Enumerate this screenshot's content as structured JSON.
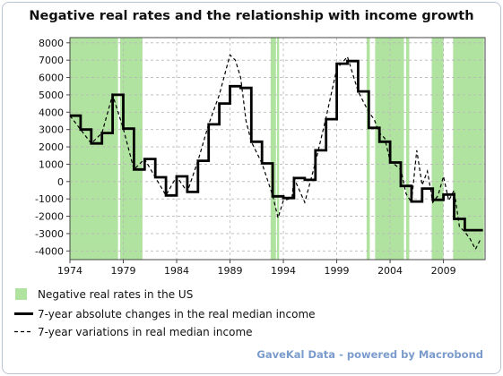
{
  "chart_data": {
    "type": "line",
    "title": "Negative real rates and the relationship with income growth",
    "xlabel": "",
    "ylabel": "",
    "xlim": [
      1974,
      2012.9
    ],
    "ylim": [
      -4500,
      8300
    ],
    "x_ticks": [
      1974,
      1979,
      1984,
      1989,
      1994,
      1999,
      2004,
      2009
    ],
    "y_ticks": [
      -4000,
      -3000,
      -2000,
      -1000,
      0,
      1000,
      2000,
      3000,
      4000,
      5000,
      6000,
      7000,
      8000
    ],
    "grid": true,
    "legend_position": "bottom-left",
    "negative_real_rate_periods": [
      [
        1974.0,
        1978.5
      ],
      [
        1978.7,
        1980.8
      ],
      [
        1992.8,
        1993.3
      ],
      [
        1993.4,
        1993.6
      ],
      [
        2001.8,
        2002.1
      ],
      [
        2002.6,
        2005.3
      ],
      [
        2005.5,
        2005.8
      ],
      [
        2007.9,
        2009.0
      ],
      [
        2009.9,
        2012.8
      ]
    ],
    "series": [
      {
        "name": "Negative real rates in the US",
        "type": "band",
        "color": "#b1e3a0"
      },
      {
        "name": "7-year absolute changes in the real median income",
        "type": "step",
        "color": "#000000",
        "x": [
          1974,
          1975,
          1976,
          1977,
          1978,
          1979,
          1980,
          1981,
          1982,
          1983,
          1984,
          1985,
          1986,
          1987,
          1988,
          1989,
          1990,
          1991,
          1992,
          1993,
          1994,
          1995,
          1996,
          1997,
          1998,
          1999,
          2000,
          2001,
          2002,
          2003,
          2004,
          2005,
          2006,
          2007,
          2008,
          2009,
          2010,
          2011,
          2012
        ],
        "y": [
          3800,
          3000,
          2200,
          2800,
          5000,
          3050,
          700,
          1300,
          250,
          -800,
          300,
          -600,
          1200,
          3300,
          4500,
          5500,
          5400,
          2300,
          1050,
          -850,
          -950,
          200,
          100,
          1800,
          3600,
          6800,
          6950,
          5200,
          3100,
          2300,
          1100,
          -250,
          -1150,
          -400,
          -1050,
          -750,
          -2150,
          -2800,
          -2800
        ]
      },
      {
        "name": "7-year variations in real median income",
        "type": "line",
        "color": "#000000",
        "dash": "dashed",
        "x": [
          1974,
          1975,
          1976,
          1977,
          1978,
          1979,
          1980,
          1981,
          1982,
          1983,
          1984,
          1985,
          1986,
          1987,
          1988,
          1989,
          1989.5,
          1990,
          1990.5,
          1991,
          1992,
          1993,
          1993.5,
          1994,
          1994.8,
          1995,
          1996,
          1997,
          1998,
          1999,
          2000,
          2001,
          2002,
          2002.5,
          2003,
          2003.5,
          2004,
          2005,
          2005.5,
          2006,
          2006.5,
          2007,
          2007.5,
          2008,
          2008.5,
          2009,
          2009.5,
          2010,
          2010.5,
          2011,
          2011.5,
          2012,
          2012.5
        ],
        "y": [
          3800,
          3000,
          2200,
          2800,
          5000,
          3050,
          700,
          1300,
          250,
          -800,
          300,
          -600,
          1200,
          3300,
          5000,
          7300,
          7000,
          6000,
          3500,
          2300,
          1050,
          -800,
          -2100,
          -1100,
          -950,
          200,
          -1200,
          1100,
          3700,
          6500,
          7200,
          5200,
          4000,
          3600,
          2800,
          2500,
          1200,
          700,
          -700,
          -1200,
          1800,
          -200,
          600,
          -1200,
          -800,
          300,
          -1100,
          -500,
          -2600,
          -2900,
          -3300,
          -3900,
          -3300
        ]
      }
    ],
    "footer": "GaveKal Data - powered by Macrobond"
  }
}
